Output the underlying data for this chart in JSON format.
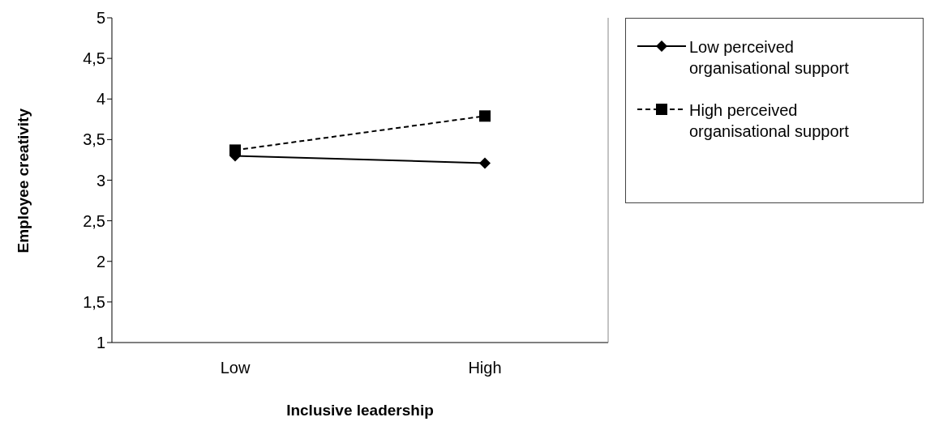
{
  "chart_data": {
    "type": "line",
    "xlabel": "Inclusive leadership",
    "ylabel": "Employee creativity",
    "categories": [
      "Low",
      "High"
    ],
    "series": [
      {
        "name": "Low perceived organisational support",
        "color": "#000000",
        "values": [
          3.3,
          3.21
        ],
        "marker": "diamond",
        "line_style": "solid"
      },
      {
        "name": "High perceived organisational support",
        "color": "#000000",
        "values": [
          3.37,
          3.79
        ],
        "marker": "square",
        "line_style": "dashed"
      }
    ],
    "ylim": [
      1,
      5
    ],
    "yticks": [
      1,
      {
        "value": 1.5,
        "label": "1,5"
      },
      2,
      {
        "value": 2.5,
        "label": "2,5"
      },
      3,
      {
        "value": 3.5,
        "label": "3,5"
      },
      4,
      {
        "value": 4.5,
        "label": "4,5"
      },
      5
    ],
    "grid": false,
    "legend": "right"
  }
}
